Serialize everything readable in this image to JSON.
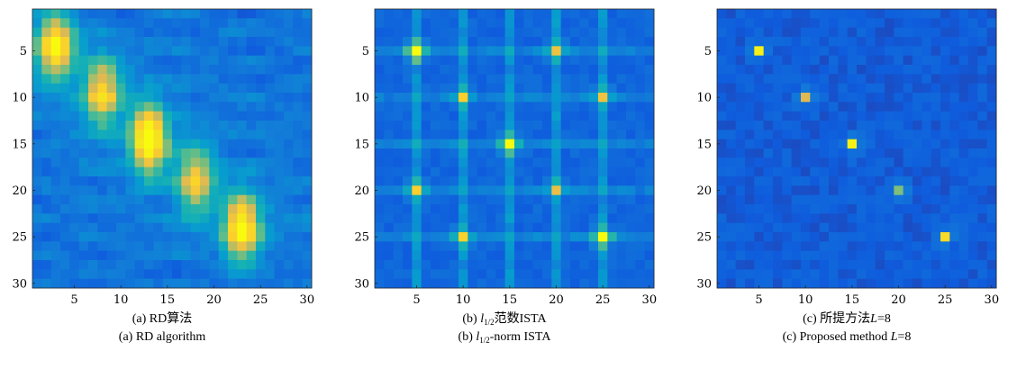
{
  "chart_data": [
    {
      "type": "heatmap",
      "caption_cn": {
        "prefix": "(a) RD算法",
        "var": "",
        "sub": "",
        "suffix": ""
      },
      "caption_en": {
        "prefix": "(a) RD algorithm",
        "var": "",
        "sub": "",
        "suffix": ""
      },
      "x_ticks": [
        "5",
        "10",
        "15",
        "20",
        "25",
        "30"
      ],
      "y_ticks": [
        "5",
        "10",
        "15",
        "20",
        "25",
        "30"
      ],
      "xlim": [
        0.5,
        30.5
      ],
      "ylim": [
        0.5,
        30.5
      ],
      "grid": false,
      "colormap": "parula",
      "peaks": [
        {
          "x": 3,
          "y": 4.5,
          "value": 0.75
        },
        {
          "x": 8,
          "y": 9.5,
          "value": 0.62
        },
        {
          "x": 13,
          "y": 14.5,
          "value": 0.88
        },
        {
          "x": 18,
          "y": 19,
          "value": 0.55
        },
        {
          "x": 23,
          "y": 24,
          "value": 0.8
        }
      ]
    },
    {
      "type": "heatmap",
      "caption_cn": {
        "prefix": "(b) ",
        "var": "l",
        "sub": "1/2",
        "suffix": "范数ISTA"
      },
      "caption_en": {
        "prefix": "(b) ",
        "var": "l",
        "sub": "1/2",
        "suffix": "-norm ISTA"
      },
      "x_ticks": [
        "5",
        "10",
        "15",
        "20",
        "25",
        "30"
      ],
      "y_ticks": [
        "5",
        "10",
        "15",
        "20",
        "25",
        "30"
      ],
      "xlim": [
        0.5,
        30.5
      ],
      "ylim": [
        0.5,
        30.5
      ],
      "grid": false,
      "colormap": "parula",
      "peaks": [
        {
          "x": 5,
          "y": 5,
          "value": 0.95
        },
        {
          "x": 10,
          "y": 10,
          "value": 0.45
        },
        {
          "x": 15,
          "y": 15,
          "value": 0.85
        },
        {
          "x": 20,
          "y": 20,
          "value": 0.4
        },
        {
          "x": 25,
          "y": 25,
          "value": 0.8
        },
        {
          "x": 5,
          "y": 20,
          "value": 0.45
        },
        {
          "x": 10,
          "y": 25,
          "value": 0.45
        },
        {
          "x": 20,
          "y": 5,
          "value": 0.4
        },
        {
          "x": 25,
          "y": 10,
          "value": 0.45
        }
      ]
    },
    {
      "type": "heatmap",
      "caption_cn": {
        "prefix": "(c) 所提方法",
        "var": "L",
        "sub": "",
        "suffix": "=8"
      },
      "caption_en": {
        "prefix": "(c) Proposed method ",
        "var": "L",
        "sub": "",
        "suffix": "=8"
      },
      "x_ticks": [
        "5",
        "10",
        "15",
        "20",
        "25",
        "30"
      ],
      "y_ticks": [
        "5",
        "10",
        "15",
        "20",
        "25",
        "30"
      ],
      "xlim": [
        0.5,
        30.5
      ],
      "ylim": [
        0.5,
        30.5
      ],
      "grid": false,
      "colormap": "parula",
      "peaks": [
        {
          "x": 5,
          "y": 5,
          "value": 0.95
        },
        {
          "x": 10,
          "y": 10,
          "value": 0.7
        },
        {
          "x": 15,
          "y": 15,
          "value": 0.95
        },
        {
          "x": 20,
          "y": 20,
          "value": 0.55
        },
        {
          "x": 25,
          "y": 25,
          "value": 0.85
        }
      ]
    }
  ]
}
